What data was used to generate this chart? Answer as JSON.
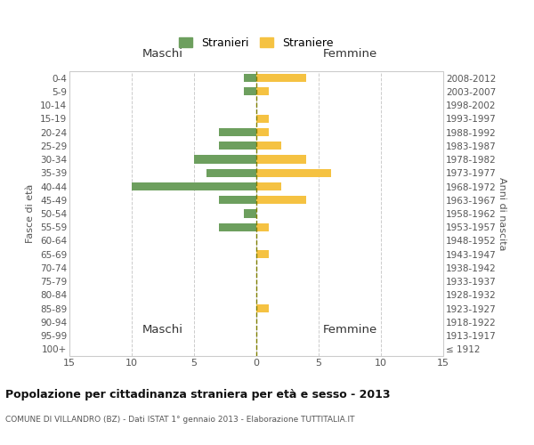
{
  "age_groups": [
    "100+",
    "95-99",
    "90-94",
    "85-89",
    "80-84",
    "75-79",
    "70-74",
    "65-69",
    "60-64",
    "55-59",
    "50-54",
    "45-49",
    "40-44",
    "35-39",
    "30-34",
    "25-29",
    "20-24",
    "15-19",
    "10-14",
    "5-9",
    "0-4"
  ],
  "birth_years": [
    "≤ 1912",
    "1913-1917",
    "1918-1922",
    "1923-1927",
    "1928-1932",
    "1933-1937",
    "1938-1942",
    "1943-1947",
    "1948-1952",
    "1953-1957",
    "1958-1962",
    "1963-1967",
    "1968-1972",
    "1973-1977",
    "1978-1982",
    "1983-1987",
    "1988-1992",
    "1993-1997",
    "1998-2002",
    "2003-2007",
    "2008-2012"
  ],
  "maschi": [
    0,
    0,
    0,
    0,
    0,
    0,
    0,
    0,
    0,
    3,
    1,
    3,
    10,
    4,
    5,
    3,
    3,
    0,
    0,
    1,
    1
  ],
  "femmine": [
    0,
    0,
    0,
    1,
    0,
    0,
    0,
    1,
    0,
    1,
    0,
    4,
    2,
    6,
    4,
    2,
    1,
    1,
    0,
    1,
    4
  ],
  "maschi_color": "#6d9f5e",
  "femmine_color": "#f5c242",
  "title": "Popolazione per cittadinanza straniera per età e sesso - 2013",
  "subtitle": "COMUNE DI VILLANDRO (BZ) - Dati ISTAT 1° gennaio 2013 - Elaborazione TUTTITALIA.IT",
  "ylabel_left": "Fasce di età",
  "ylabel_right": "Anni di nascita",
  "xlabel_maschi": "Maschi",
  "xlabel_femmine": "Femmine",
  "legend_maschi": "Stranieri",
  "legend_femmine": "Straniere",
  "xlim": 15,
  "background_color": "#ffffff",
  "grid_color": "#cccccc",
  "bar_height": 0.6,
  "center_line_color": "#7f7f00",
  "center_line_style": "--"
}
